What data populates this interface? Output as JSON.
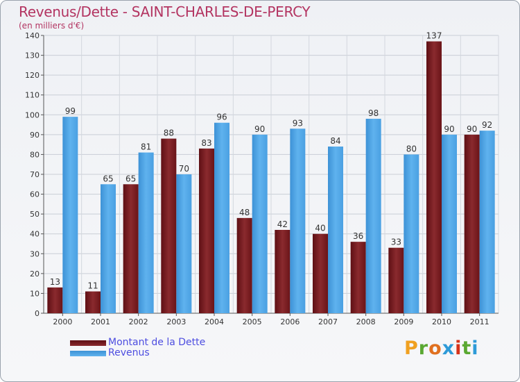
{
  "title": "Revenus/Dette - SAINT-CHARLES-DE-PERCY",
  "subtitle": "(en milliers d'€)",
  "brand": {
    "letters": [
      "P",
      "r",
      "o",
      "x",
      "i",
      "t",
      "i"
    ],
    "colors": [
      "#f0a020",
      "#5aa832",
      "#e07020",
      "#2d9ad8",
      "#d6331b",
      "#5aa832",
      "#2d9ad8"
    ]
  },
  "chart_data": {
    "type": "bar",
    "title": "Revenus/Dette - SAINT-CHARLES-DE-PERCY",
    "subtitle": "(en milliers d'€)",
    "categories": [
      "2000",
      "2001",
      "2002",
      "2003",
      "2004",
      "2005",
      "2006",
      "2007",
      "2008",
      "2009",
      "2010",
      "2011"
    ],
    "series": [
      {
        "name": "Montant de la Dette",
        "color": "#7a1e22",
        "values": [
          13,
          11,
          65,
          88,
          83,
          48,
          42,
          40,
          36,
          33,
          137,
          90
        ]
      },
      {
        "name": "Revenus",
        "color": "#4aa3e6",
        "values": [
          99,
          65,
          81,
          70,
          96,
          90,
          93,
          84,
          98,
          80,
          90,
          92
        ]
      }
    ],
    "ylim": [
      0,
      140
    ],
    "yticks": [
      0,
      10,
      20,
      30,
      40,
      50,
      60,
      70,
      80,
      90,
      100,
      110,
      120,
      130,
      140
    ],
    "grid": true,
    "legend": "bottom-left",
    "data_labels": true
  }
}
